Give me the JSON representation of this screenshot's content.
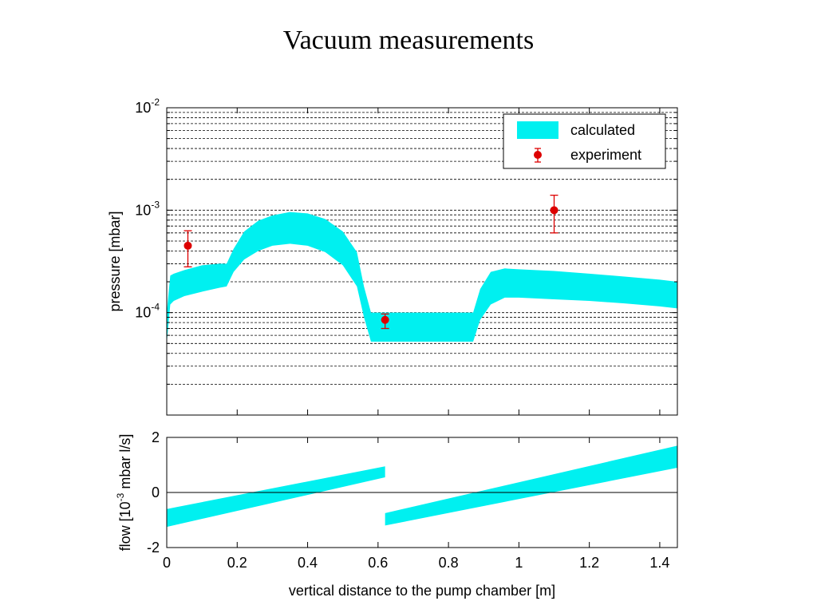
{
  "slide": {
    "title": "Vacuum measurements"
  },
  "colors": {
    "band": "#00f0f0",
    "marker": "#dd0000",
    "grid": "#000000"
  },
  "chart_data": [
    {
      "type": "area",
      "yscale": "log",
      "xlim": [
        0,
        1.45
      ],
      "ylim": [
        1e-05,
        0.01
      ],
      "xlabel": "",
      "ylabel": "pressure [mbar]",
      "yticks": [
        {
          "base": "10",
          "exp": "-2",
          "value": 0.01
        },
        {
          "base": "10",
          "exp": "-3",
          "value": 0.001
        },
        {
          "base": "10",
          "exp": "-4",
          "value": 0.0001
        }
      ],
      "grid": "horizontal dashed minor",
      "legend": {
        "position": "top-right",
        "entries": [
          "calculated",
          "experiment"
        ]
      },
      "series": [
        {
          "name": "calculated",
          "kind": "band",
          "x": [
            0,
            0.01,
            0.02,
            0.05,
            0.1,
            0.15,
            0.17,
            0.19,
            0.22,
            0.26,
            0.3,
            0.35,
            0.4,
            0.45,
            0.5,
            0.54,
            0.56,
            0.58,
            0.62,
            0.7,
            0.8,
            0.87,
            0.89,
            0.92,
            0.96,
            1.0,
            1.1,
            1.2,
            1.3,
            1.4,
            1.45
          ],
          "lower": [
            5e-05,
            0.00012,
            0.00013,
            0.000145,
            0.00016,
            0.000175,
            0.00018,
            0.00025,
            0.00033,
            0.0004,
            0.00045,
            0.00047,
            0.00045,
            0.00039,
            0.00029,
            0.00018,
            9e-05,
            5.2e-05,
            5.2e-05,
            5.2e-05,
            5.2e-05,
            5.2e-05,
            8.5e-05,
            0.00012,
            0.00014,
            0.00014,
            0.000135,
            0.00013,
            0.000123,
            0.000115,
            0.00011
          ],
          "upper": [
            0.0001,
            0.00023,
            0.00024,
            0.00026,
            0.00029,
            0.0003,
            0.0003,
            0.00042,
            0.00062,
            0.00079,
            0.00089,
            0.00096,
            0.00093,
            0.00082,
            0.00062,
            0.00039,
            0.00018,
            0.0001,
            0.0001,
            0.0001,
            0.0001,
            0.0001,
            0.00017,
            0.00025,
            0.00027,
            0.000265,
            0.000255,
            0.00024,
            0.000225,
            0.00021,
            0.0002
          ]
        },
        {
          "name": "experiment",
          "kind": "errorbar",
          "points": [
            {
              "x": 0.06,
              "y": 0.00045,
              "ylow": 0.00028,
              "yhigh": 0.00063
            },
            {
              "x": 0.62,
              "y": 8.5e-05,
              "ylow": 7e-05,
              "yhigh": 9.7e-05
            },
            {
              "x": 1.1,
              "y": 0.001,
              "ylow": 0.0006,
              "yhigh": 0.0014
            }
          ]
        }
      ]
    },
    {
      "type": "area",
      "xlim": [
        0,
        1.45
      ],
      "ylim": [
        -2,
        2
      ],
      "xlabel": "vertical distance to the pump chamber [m]",
      "ylabel": {
        "pre": "flow [10",
        "sup": "-3",
        "post": " mbar l/s]"
      },
      "xticks": [
        "0",
        "0.2",
        "0.4",
        "0.6",
        "0.8",
        "1",
        "1.2",
        "1.4"
      ],
      "xtick_values": [
        0,
        0.2,
        0.4,
        0.6,
        0.8,
        1.0,
        1.2,
        1.4
      ],
      "yticks": [
        "2",
        "0",
        "-2"
      ],
      "ytick_values": [
        2,
        0,
        -2
      ],
      "series": [
        {
          "name": "",
          "kind": "band",
          "segments": [
            {
              "x": [
                0,
                0.62
              ],
              "lower": [
                -1.25,
                0.55
              ],
              "upper": [
                -0.6,
                0.95
              ]
            },
            {
              "x": [
                0.62,
                1.45
              ],
              "lower": [
                -1.2,
                0.9
              ],
              "upper": [
                -0.75,
                1.7
              ]
            }
          ]
        }
      ],
      "zero_line": true
    }
  ]
}
